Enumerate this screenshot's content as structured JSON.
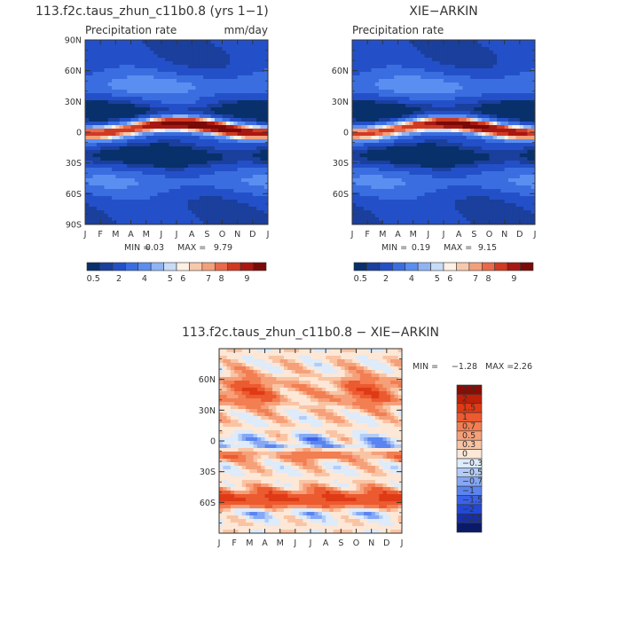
{
  "colors": {
    "prec_scale": [
      "#08306b",
      "#1a3f9c",
      "#2350c8",
      "#3a6ee0",
      "#5a8ef0",
      "#8fb4f5",
      "#c6dcf7",
      "#fdf0e4",
      "#f7c8ab",
      "#f2a07c",
      "#e9694a",
      "#d03a22",
      "#a81812",
      "#7a0a08"
    ],
    "diff_scale": [
      "#0b1a66",
      "#1530a8",
      "#2448d6",
      "#3a62e8",
      "#5a84f0",
      "#86a8f4",
      "#b3ccf7",
      "#ddebfb",
      "#fde7d6",
      "#f9c4a4",
      "#f6a07a",
      "#f27e52",
      "#ec5a30",
      "#df3a16",
      "#c02008",
      "#8a0c04"
    ]
  },
  "chart_data": [
    {
      "type": "heatmap",
      "title": "113.f2c.taus_zhun_c11b0.8 (yrs 1−1)",
      "subtitle_left": "Precipitation rate",
      "subtitle_right": "mm/day",
      "x_ticks": [
        "J",
        "F",
        "M",
        "A",
        "M",
        "J",
        "J",
        "A",
        "S",
        "O",
        "N",
        "D",
        "J"
      ],
      "y_ticks": [
        "90N",
        "60N",
        "30N",
        "0",
        "30S",
        "60S",
        "90S"
      ],
      "min_label": "MIN =",
      "min_value": "0.03",
      "max_label": "MAX =",
      "max_value": "9.79",
      "colorbar_labels": [
        "0.5",
        "2",
        "4",
        "5",
        "6",
        "7",
        "8",
        "9"
      ]
    },
    {
      "type": "heatmap",
      "title": "XIE−ARKIN",
      "subtitle_left": "Precipitation rate",
      "x_ticks": [
        "J",
        "F",
        "M",
        "A",
        "M",
        "J",
        "J",
        "A",
        "S",
        "O",
        "N",
        "D",
        "J"
      ],
      "y_ticks": [
        "60N",
        "30N",
        "0",
        "30S",
        "60S"
      ],
      "min_label": "MIN =",
      "min_value": "0.19",
      "max_label": "MAX =",
      "max_value": "9.15",
      "colorbar_labels": [
        "0.5",
        "2",
        "4",
        "5",
        "6",
        "7",
        "8",
        "9"
      ]
    },
    {
      "type": "heatmap",
      "title": "113.f2c.taus_zhun_c11b0.8 − XIE−ARKIN",
      "x_ticks": [
        "J",
        "F",
        "M",
        "A",
        "M",
        "J",
        "J",
        "A",
        "S",
        "O",
        "N",
        "D",
        "J"
      ],
      "y_ticks": [
        "60N",
        "30N",
        "0",
        "30S",
        "60S"
      ],
      "min_label": "MIN =",
      "min_value": "−1.28",
      "max_label": "MAX =",
      "max_value": "2.26",
      "colorbar_labels": [
        "2.5",
        "2",
        "1.5",
        "1",
        "0.7",
        "0.5",
        "0.3",
        "0",
        "−0.3",
        "−0.5",
        "−0.7",
        "−1",
        "−1.5",
        "−2",
        "−2.5"
      ]
    }
  ]
}
